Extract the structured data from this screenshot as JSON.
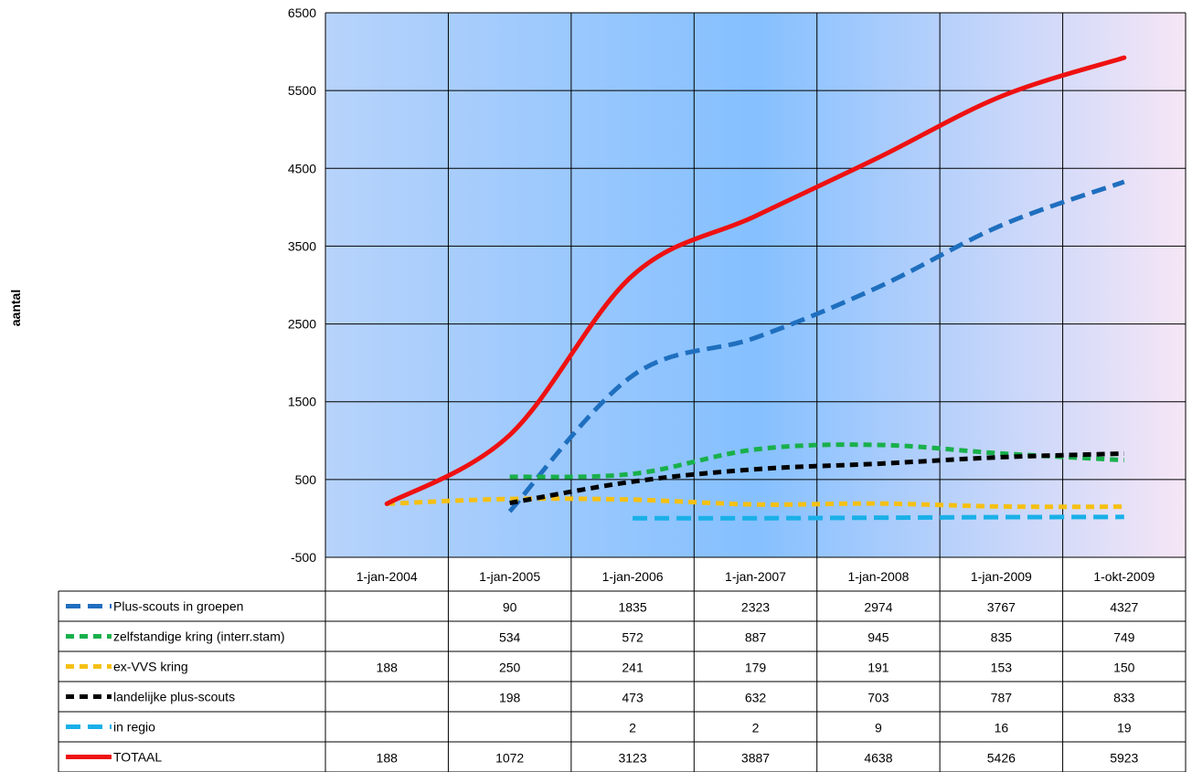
{
  "chart_data": {
    "type": "line",
    "title": "",
    "xlabel": "",
    "ylabel": "aantal",
    "ylim": [
      -500,
      6500
    ],
    "yticks": [
      "6500",
      "5500",
      "4500",
      "3500",
      "2500",
      "1500",
      "500",
      "-500"
    ],
    "grid": true,
    "legend": "data table below chart",
    "categories": [
      "1-jan-2004",
      "1-jan-2005",
      "1-jan-2006",
      "1-jan-2007",
      "1-jan-2008",
      "1-jan-2009",
      "1-okt-2009"
    ],
    "series": [
      {
        "name": "Plus-scouts in groepen",
        "color": "#1f6fbf",
        "dash": "long",
        "values": [
          null,
          90,
          1835,
          2323,
          2974,
          3767,
          4327
        ],
        "labels": [
          "",
          "90",
          "1835",
          "2323",
          "2974",
          "3767",
          "4327"
        ]
      },
      {
        "name": "zelfstandige kring (interr.stam)",
        "color": "#19b04b",
        "dash": "short",
        "values": [
          null,
          534,
          572,
          887,
          945,
          835,
          749
        ],
        "labels": [
          "",
          "534",
          "572",
          "887",
          "945",
          "835",
          "749"
        ]
      },
      {
        "name": "ex-VVS kring",
        "color": "#f5c013",
        "dash": "short",
        "values": [
          188,
          250,
          241,
          179,
          191,
          153,
          150
        ],
        "labels": [
          "188",
          "250",
          "241",
          "179",
          "191",
          "153",
          "150"
        ]
      },
      {
        "name": "landelijke plus-scouts",
        "color": "#000000",
        "dash": "short",
        "values": [
          null,
          198,
          473,
          632,
          703,
          787,
          833
        ],
        "labels": [
          "",
          "198",
          "473",
          "632",
          "703",
          "787",
          "833"
        ]
      },
      {
        "name": "in regio",
        "color": "#1ab0e8",
        "dash": "long",
        "values": [
          null,
          null,
          2,
          2,
          9,
          16,
          19
        ],
        "labels": [
          "",
          "",
          "2",
          "2",
          "9",
          "16",
          "19"
        ]
      },
      {
        "name": "TOTAAL",
        "color": "#ee1111",
        "dash": "solid",
        "values": [
          188,
          1072,
          3123,
          3887,
          4638,
          5426,
          5923
        ],
        "labels": [
          "188",
          "1072",
          "3123",
          "3887",
          "4638",
          "5426",
          "5923"
        ]
      }
    ]
  }
}
